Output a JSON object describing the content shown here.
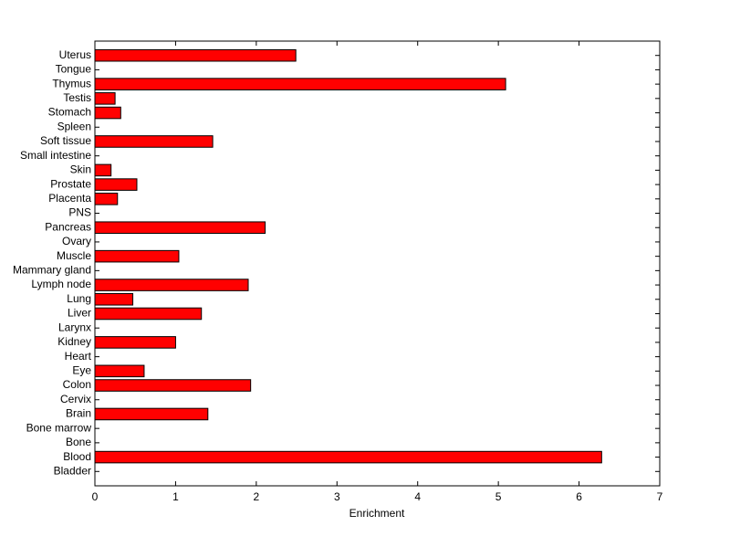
{
  "chart_data": {
    "type": "barh",
    "xlabel": "Enrichment",
    "categories": [
      "Bladder",
      "Blood",
      "Bone",
      "Bone marrow",
      "Brain",
      "Cervix",
      "Colon",
      "Eye",
      "Heart",
      "Kidney",
      "Larynx",
      "Liver",
      "Lung",
      "Lymph node",
      "Mammary gland",
      "Muscle",
      "Ovary",
      "Pancreas",
      "PNS",
      "Placenta",
      "Prostate",
      "Skin",
      "Small intestine",
      "Soft tissue",
      "Spleen",
      "Stomach",
      "Testis",
      "Thymus",
      "Tongue",
      "Uterus"
    ],
    "values": [
      0,
      6.28,
      0,
      0,
      1.4,
      0,
      1.93,
      0.61,
      0,
      1.0,
      0,
      1.32,
      0.47,
      1.9,
      0,
      1.04,
      0,
      2.11,
      0,
      0.28,
      0.52,
      0.2,
      0,
      1.46,
      0,
      0.32,
      0.25,
      5.09,
      0,
      2.49
    ],
    "color": "#ff0000",
    "xlim": [
      0,
      7
    ],
    "xticks": [
      0,
      1,
      2,
      3,
      4,
      5,
      6,
      7
    ]
  }
}
